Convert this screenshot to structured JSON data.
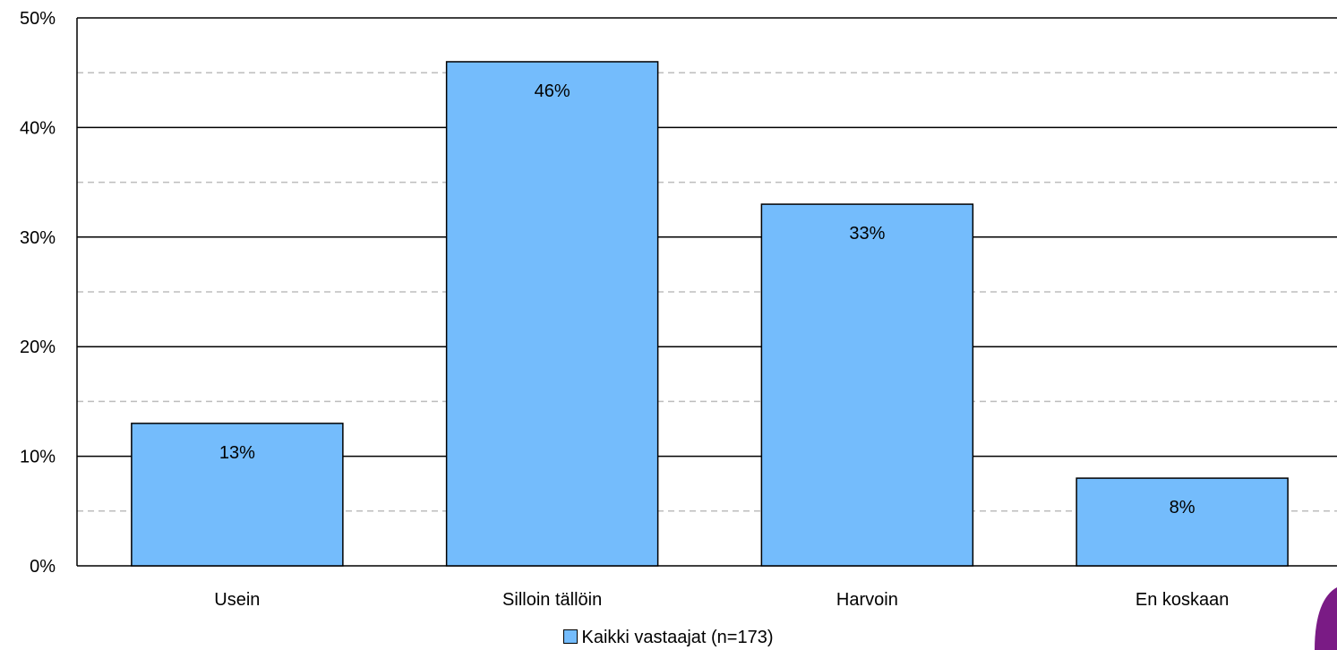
{
  "chart_data": {
    "type": "bar",
    "categories": [
      "Usein",
      "Silloin tällöin",
      "Harvoin",
      "En koskaan"
    ],
    "series": [
      {
        "name": "Kaikki vastaajat (n=173)",
        "values": [
          13,
          46,
          33,
          8
        ]
      }
    ],
    "data_labels": [
      "13%",
      "46%",
      "33%",
      "8%"
    ],
    "ylim": [
      0,
      50
    ],
    "y_ticks": [
      0,
      10,
      20,
      30,
      40,
      50
    ],
    "y_tick_labels": [
      "0%",
      "10%",
      "20%",
      "30%",
      "40%",
      "50%"
    ],
    "grid": true,
    "legend": "bottom-center",
    "colors": {
      "bar": "#74bcfc",
      "bar_edge": "#000000",
      "major_grid": "#000000",
      "minor_grid": "#bdbdbd",
      "logo": "#7a1b85"
    }
  }
}
